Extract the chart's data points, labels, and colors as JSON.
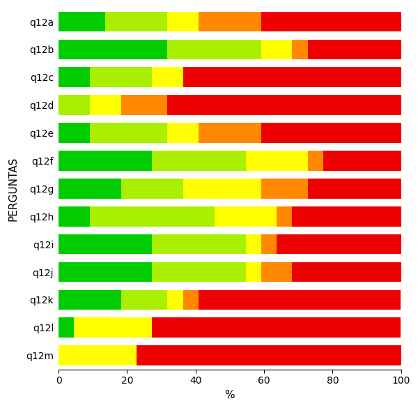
{
  "categories": [
    "q12a",
    "q12b",
    "q12c",
    "q12d",
    "q12e",
    "q12f",
    "q12g",
    "q12h",
    "q12i",
    "q12j",
    "q12k",
    "q12l",
    "q12m"
  ],
  "segments": [
    [
      13.6,
      18.2,
      9.1,
      18.2,
      40.9
    ],
    [
      31.8,
      27.3,
      9.1,
      4.5,
      27.3
    ],
    [
      9.1,
      18.2,
      9.1,
      0.0,
      63.6
    ],
    [
      0.0,
      9.1,
      9.1,
      13.6,
      68.2
    ],
    [
      9.1,
      22.7,
      9.1,
      18.2,
      40.9
    ],
    [
      27.3,
      27.3,
      18.2,
      4.5,
      22.7
    ],
    [
      18.2,
      18.2,
      22.7,
      13.6,
      27.3
    ],
    [
      9.1,
      36.4,
      18.2,
      4.5,
      31.8
    ],
    [
      27.3,
      27.3,
      4.5,
      4.5,
      36.4
    ],
    [
      27.3,
      27.3,
      4.5,
      9.1,
      31.8
    ],
    [
      18.2,
      13.6,
      4.5,
      4.5,
      59.1
    ],
    [
      4.5,
      0.0,
      22.7,
      0.0,
      72.7
    ],
    [
      0.0,
      0.0,
      22.7,
      0.0,
      77.3
    ]
  ],
  "colors": [
    "#00CC00",
    "#AAEE00",
    "#FFFF00",
    "#FF8800",
    "#EE0000"
  ],
  "xlabel": "%",
  "ylabel": "PERGUNTAS",
  "xlim": [
    0,
    100
  ],
  "xticks": [
    0,
    20,
    40,
    60,
    80,
    100
  ],
  "bar_height": 0.72,
  "fig_width": 6.0,
  "fig_height": 5.85,
  "dpi": 100
}
